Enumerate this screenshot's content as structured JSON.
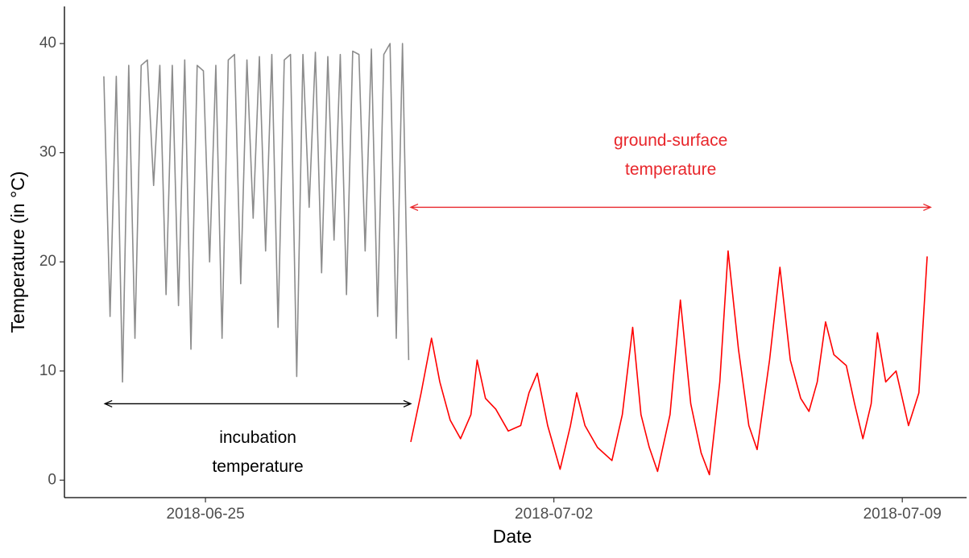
{
  "chart_data": {
    "type": "line",
    "xlabel": "Date",
    "ylabel": "Temperature (in °C)",
    "xlim": [
      "2018-06-22T04:00",
      "2018-07-10T07:00"
    ],
    "xticks": [
      "2018-06-25",
      "2018-07-02",
      "2018-07-09"
    ],
    "ylim": [
      -1.6,
      43.4
    ],
    "yticks": [
      0,
      10,
      20,
      30,
      40
    ],
    "grid": false,
    "series": [
      {
        "color": "#8c8c8c",
        "x": [
          "2018-06-22T23:00",
          "2018-06-23T02:00",
          "2018-06-23T05:00",
          "2018-06-23T08:00",
          "2018-06-23T11:00",
          "2018-06-23T14:00",
          "2018-06-23T17:00",
          "2018-06-23T20:00",
          "2018-06-23T23:00",
          "2018-06-24T02:00",
          "2018-06-24T05:00",
          "2018-06-24T08:00",
          "2018-06-24T11:00",
          "2018-06-24T14:00",
          "2018-06-24T17:00",
          "2018-06-24T20:00",
          "2018-06-24T23:00",
          "2018-06-25T02:00",
          "2018-06-25T05:00",
          "2018-06-25T08:00",
          "2018-06-25T11:00",
          "2018-06-25T14:00",
          "2018-06-25T17:00",
          "2018-06-25T20:00",
          "2018-06-25T23:00",
          "2018-06-26T02:00",
          "2018-06-26T05:00",
          "2018-06-26T08:00",
          "2018-06-26T11:00",
          "2018-06-26T14:00",
          "2018-06-26T17:00",
          "2018-06-26T20:00",
          "2018-06-26T23:00",
          "2018-06-27T02:00",
          "2018-06-27T05:00",
          "2018-06-27T08:00",
          "2018-06-27T11:00",
          "2018-06-27T14:00",
          "2018-06-27T17:00",
          "2018-06-27T20:00",
          "2018-06-27T23:00",
          "2018-06-28T02:00",
          "2018-06-28T05:00",
          "2018-06-28T08:00",
          "2018-06-28T11:00",
          "2018-06-28T14:00",
          "2018-06-28T17:00",
          "2018-06-28T20:00",
          "2018-06-28T23:00",
          "2018-06-29T02:00"
        ],
        "values": [
          37,
          15,
          37,
          9,
          38,
          13,
          38,
          38.5,
          27,
          38,
          17,
          38,
          16,
          38.5,
          12,
          38,
          37.5,
          20,
          38,
          13,
          38.5,
          39,
          18,
          38.5,
          24,
          38.8,
          21,
          39,
          14,
          38.5,
          39,
          9.5,
          39,
          25,
          39.2,
          19,
          38.8,
          22,
          39,
          17,
          39.3,
          39,
          21,
          39.5,
          15,
          39,
          40,
          13,
          40,
          11
        ]
      },
      {
        "color": "#ff0000",
        "x": [
          "2018-06-29T03:00",
          "2018-06-29T08:00",
          "2018-06-29T13:00",
          "2018-06-29T17:00",
          "2018-06-29T22:00",
          "2018-06-30T03:00",
          "2018-06-30T08:00",
          "2018-06-30T11:00",
          "2018-06-30T15:00",
          "2018-06-30T20:00",
          "2018-07-01T02:00",
          "2018-07-01T08:00",
          "2018-07-01T12:00",
          "2018-07-01T16:00",
          "2018-07-01T21:00",
          "2018-07-02T03:00",
          "2018-07-02T08:00",
          "2018-07-02T11:00",
          "2018-07-02T15:00",
          "2018-07-02T21:00",
          "2018-07-03T04:00",
          "2018-07-03T09:00",
          "2018-07-03T14:00",
          "2018-07-03T18:00",
          "2018-07-03T22:00",
          "2018-07-04T02:00",
          "2018-07-04T08:00",
          "2018-07-04T13:00",
          "2018-07-04T18:00",
          "2018-07-04T23:00",
          "2018-07-05T03:00",
          "2018-07-05T08:00",
          "2018-07-05T12:00",
          "2018-07-05T17:00",
          "2018-07-05T22:00",
          "2018-07-06T02:00",
          "2018-07-06T08:00",
          "2018-07-06T13:00",
          "2018-07-06T18:00",
          "2018-07-06T23:00",
          "2018-07-07T03:00",
          "2018-07-07T07:00",
          "2018-07-07T11:00",
          "2018-07-07T15:00",
          "2018-07-07T21:00",
          "2018-07-08T01:00",
          "2018-07-08T05:00",
          "2018-07-08T09:00",
          "2018-07-08T12:00",
          "2018-07-08T16:00",
          "2018-07-08T21:00",
          "2018-07-09T03:00",
          "2018-07-09T08:00",
          "2018-07-09T12:00"
        ],
        "values": [
          3.5,
          8,
          13,
          9,
          5.5,
          3.8,
          6,
          11,
          7.5,
          6.5,
          4.5,
          5,
          8,
          9.8,
          5,
          1,
          5,
          8,
          5,
          3,
          1.8,
          6,
          14,
          6,
          3,
          0.8,
          6,
          16.5,
          7,
          2.5,
          0.5,
          9,
          21,
          12,
          5,
          2.8,
          11,
          19.5,
          11,
          7.5,
          6.3,
          9,
          14.5,
          11.5,
          10.5,
          7,
          3.8,
          7,
          13.5,
          9,
          10,
          5,
          8,
          20.5
        ]
      }
    ],
    "annotations": [
      {
        "text": [
          "incubation",
          "temperature"
        ],
        "color": "#000000",
        "label_side": "below",
        "arrow_x": [
          "2018-06-22T23:30",
          "2018-06-29T03:00"
        ],
        "arrow_y": 7
      },
      {
        "text": [
          "ground-surface",
          "temperature"
        ],
        "color": "#e8262b",
        "label_side": "above",
        "arrow_x": [
          "2018-06-29T03:00",
          "2018-07-09T13:40"
        ],
        "arrow_y": 25
      }
    ]
  }
}
